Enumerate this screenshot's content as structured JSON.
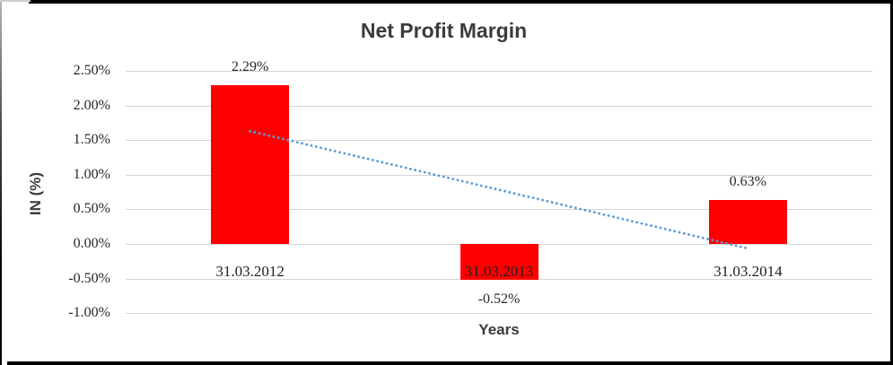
{
  "chart_data": {
    "type": "bar",
    "title": "Net Profit Margin",
    "xlabel": "Years",
    "ylabel": "IN (%)",
    "categories": [
      "31.03.2012",
      "31.03.2013",
      "31.03.2014"
    ],
    "series": [
      {
        "name": "Net Profit Margin",
        "values": [
          2.29,
          -0.52,
          0.63
        ]
      }
    ],
    "value_labels": [
      "2.29%",
      "-0.52%",
      "0.63%"
    ],
    "y_ticks": [
      "2.50%",
      "2.00%",
      "1.50%",
      "1.00%",
      "0.50%",
      "0.00%",
      "-0.50%",
      "-1.00%"
    ],
    "y_tick_values": [
      2.5,
      2.0,
      1.5,
      1.0,
      0.5,
      0.0,
      -0.5,
      -1.0
    ],
    "ylim": [
      -1.0,
      2.5
    ],
    "grid": true,
    "legend": false,
    "bar_color": "#FF0000",
    "gridline_color": "#d5d5d5",
    "trendline": {
      "type": "linear",
      "style": "dotted",
      "color": "#5B9BD5",
      "start_value": 1.63,
      "end_value": -0.06
    }
  }
}
